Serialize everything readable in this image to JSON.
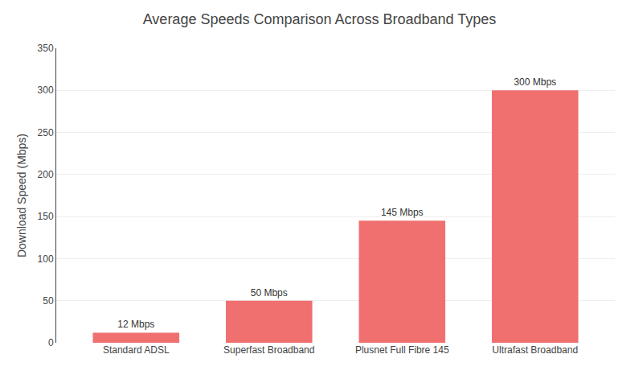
{
  "chart_data": {
    "type": "bar",
    "title": "Average Speeds Comparison Across Broadband Types",
    "categories": [
      "Standard ADSL",
      "Superfast Broadband",
      "Plusnet Full Fibre 145",
      "Ultrafast Broadband"
    ],
    "values": [
      12,
      50,
      145,
      300
    ],
    "value_labels": [
      "12 Mbps",
      "50 Mbps",
      "145 Mbps",
      "300 Mbps"
    ],
    "data_labels": true,
    "color": "#F07070",
    "ylabel": "Download Speed (Mbps)",
    "ylim": [
      0,
      350
    ],
    "yticks": [
      0,
      50,
      100,
      150,
      200,
      250,
      300,
      350
    ],
    "grid": true
  }
}
